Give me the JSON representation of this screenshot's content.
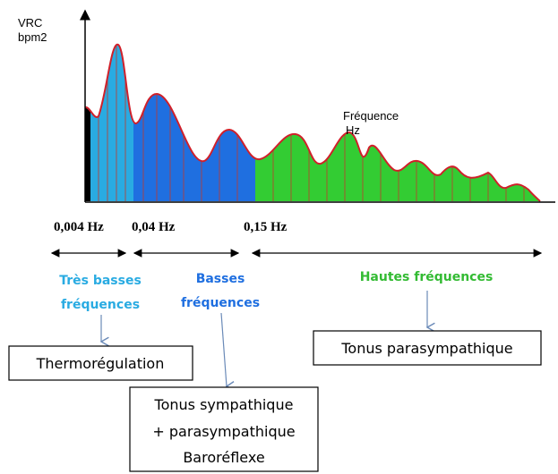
{
  "axis": {
    "y_label": [
      "VRC",
      "bpm2"
    ],
    "x_label": [
      "Fréquence",
      "Hz"
    ]
  },
  "ticks": [
    "0,004 Hz",
    "0,04 Hz",
    "0,15 Hz"
  ],
  "bands": [
    {
      "label": [
        "Très basses",
        "fréquences"
      ]
    },
    {
      "label": [
        "Basses",
        "fréquences"
      ]
    },
    {
      "label": [
        "Hautes fréquences"
      ]
    }
  ],
  "boxes": [
    {
      "lines": [
        "Thermorégulation"
      ]
    },
    {
      "lines": [
        "Tonus sympathique",
        "+ parasympathique",
        "Baroréflexe"
      ]
    },
    {
      "lines": [
        "Tonus parasympathique"
      ]
    }
  ]
}
